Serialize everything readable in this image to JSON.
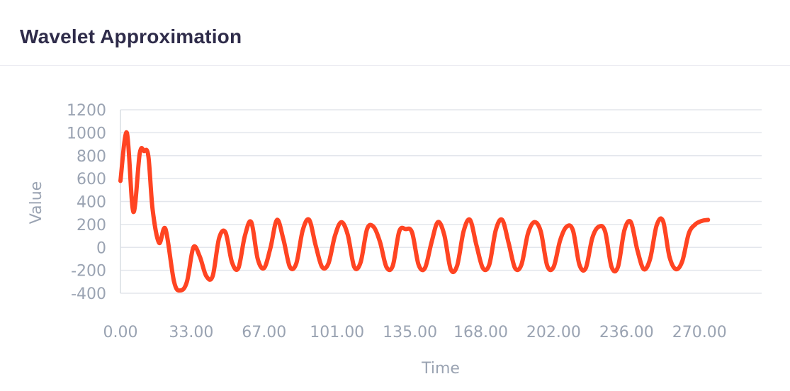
{
  "card": {
    "title": "Wavelet Approximation"
  },
  "chart_data": {
    "type": "line",
    "title": "Wavelet Approximation",
    "xlabel": "Time",
    "ylabel": "Value",
    "xlim": [
      0,
      299
    ],
    "ylim": [
      -400,
      1200
    ],
    "y_ticks": [
      1200,
      1000,
      800,
      600,
      400,
      200,
      0,
      -200,
      -400
    ],
    "x_ticks": [
      {
        "value": 0,
        "label": "0.00"
      },
      {
        "value": 33,
        "label": "33.00"
      },
      {
        "value": 67,
        "label": "67.00"
      },
      {
        "value": 101,
        "label": "101.00"
      },
      {
        "value": 135,
        "label": "135.00"
      },
      {
        "value": 168,
        "label": "168.00"
      },
      {
        "value": 202,
        "label": "202.00"
      },
      {
        "value": 236,
        "label": "236.00"
      },
      {
        "value": 270,
        "label": "270.00"
      }
    ],
    "grid": true,
    "series": [
      {
        "color": "#ff4422",
        "points": [
          [
            0,
            580
          ],
          [
            3,
            1000
          ],
          [
            6,
            310
          ],
          [
            9,
            820
          ],
          [
            11,
            840
          ],
          [
            13,
            800
          ],
          [
            15,
            330
          ],
          [
            18,
            40
          ],
          [
            21,
            160
          ],
          [
            25,
            -300
          ],
          [
            28,
            -375
          ],
          [
            31,
            -300
          ],
          [
            34,
            0
          ],
          [
            37,
            -80
          ],
          [
            40,
            -250
          ],
          [
            43,
            -250
          ],
          [
            46,
            80
          ],
          [
            49,
            130
          ],
          [
            52,
            -130
          ],
          [
            55,
            -180
          ],
          [
            58,
            100
          ],
          [
            61,
            220
          ],
          [
            64,
            -100
          ],
          [
            67,
            -180
          ],
          [
            70,
            0
          ],
          [
            73,
            240
          ],
          [
            76,
            70
          ],
          [
            79,
            -170
          ],
          [
            82,
            -140
          ],
          [
            85,
            150
          ],
          [
            88,
            240
          ],
          [
            91,
            20
          ],
          [
            94,
            -170
          ],
          [
            97,
            -140
          ],
          [
            100,
            100
          ],
          [
            103,
            220
          ],
          [
            106,
            110
          ],
          [
            109,
            -170
          ],
          [
            112,
            -130
          ],
          [
            115,
            160
          ],
          [
            118,
            180
          ],
          [
            121,
            50
          ],
          [
            124,
            -170
          ],
          [
            127,
            -160
          ],
          [
            130,
            140
          ],
          [
            133,
            160
          ],
          [
            136,
            130
          ],
          [
            139,
            -150
          ],
          [
            142,
            -180
          ],
          [
            145,
            40
          ],
          [
            148,
            220
          ],
          [
            151,
            110
          ],
          [
            154,
            -190
          ],
          [
            157,
            -160
          ],
          [
            160,
            140
          ],
          [
            163,
            240
          ],
          [
            166,
            20
          ],
          [
            169,
            -180
          ],
          [
            172,
            -150
          ],
          [
            175,
            150
          ],
          [
            178,
            240
          ],
          [
            181,
            40
          ],
          [
            184,
            -180
          ],
          [
            187,
            -150
          ],
          [
            190,
            120
          ],
          [
            193,
            220
          ],
          [
            196,
            140
          ],
          [
            199,
            -160
          ],
          [
            202,
            -170
          ],
          [
            205,
            60
          ],
          [
            208,
            180
          ],
          [
            211,
            150
          ],
          [
            214,
            -150
          ],
          [
            217,
            -180
          ],
          [
            220,
            80
          ],
          [
            223,
            180
          ],
          [
            226,
            140
          ],
          [
            229,
            -170
          ],
          [
            232,
            -170
          ],
          [
            235,
            150
          ],
          [
            238,
            220
          ],
          [
            241,
            -20
          ],
          [
            244,
            -190
          ],
          [
            247,
            -100
          ],
          [
            250,
            190
          ],
          [
            253,
            230
          ],
          [
            256,
            -80
          ],
          [
            259,
            -190
          ],
          [
            262,
            -120
          ],
          [
            265,
            120
          ],
          [
            268,
            200
          ],
          [
            271,
            230
          ],
          [
            274,
            240
          ]
        ]
      }
    ]
  }
}
